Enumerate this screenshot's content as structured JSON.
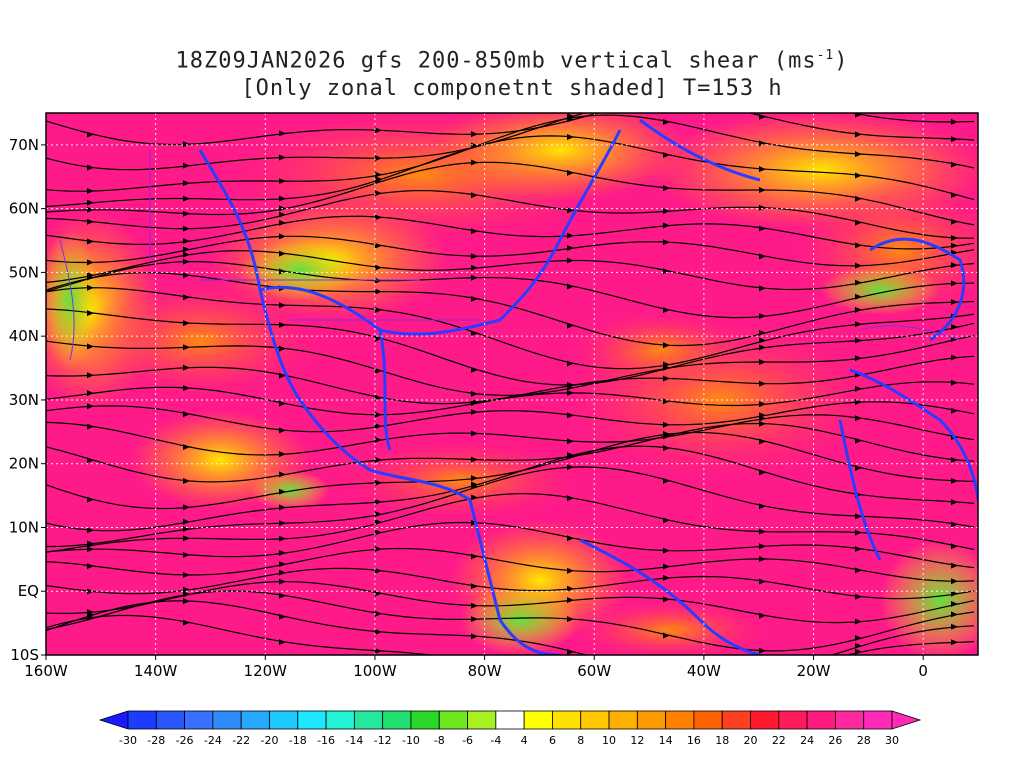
{
  "title": {
    "line1_prefix": "18Z09JAN2026 gfs 200-850mb vertical shear (ms",
    "line1_sup": "-1",
    "line1_suffix": ")",
    "line2": "[Only zonal componetnt shaded] T=153 h"
  },
  "map_data": {
    "lon_range": [
      -160,
      10
    ],
    "lat_range": [
      -10,
      75
    ],
    "lat_ticks": [
      {
        "value": 70,
        "label": "70N"
      },
      {
        "value": 60,
        "label": "60N"
      },
      {
        "value": 50,
        "label": "50N"
      },
      {
        "value": 40,
        "label": "40N"
      },
      {
        "value": 30,
        "label": "30N"
      },
      {
        "value": 20,
        "label": "20N"
      },
      {
        "value": 10,
        "label": "10N"
      },
      {
        "value": 0,
        "label": "EQ"
      },
      {
        "value": -10,
        "label": "10S"
      }
    ],
    "lon_ticks": [
      {
        "value": -160,
        "label": "160W"
      },
      {
        "value": -140,
        "label": "140W"
      },
      {
        "value": -120,
        "label": "120W"
      },
      {
        "value": -100,
        "label": "100W"
      },
      {
        "value": -80,
        "label": "80W"
      },
      {
        "value": -60,
        "label": "60W"
      },
      {
        "value": -40,
        "label": "40W"
      },
      {
        "value": -20,
        "label": "20W"
      },
      {
        "value": 0,
        "label": "0"
      }
    ],
    "grid": true
  },
  "colorbar": {
    "labels": [
      "-30",
      "-28",
      "-26",
      "-24",
      "-22",
      "-20",
      "-18",
      "-16",
      "-14",
      "-12",
      "-10",
      "-8",
      "-6",
      "-4",
      "4",
      "6",
      "8",
      "10",
      "12",
      "14",
      "16",
      "18",
      "20",
      "22",
      "24",
      "26",
      "28",
      "30"
    ],
    "colors": [
      "#1e3cff",
      "#2a55ff",
      "#3a70ff",
      "#2f8cff",
      "#25a8ff",
      "#1fc8ff",
      "#1ee8ff",
      "#22f2d6",
      "#25e8a0",
      "#22e070",
      "#2ad82a",
      "#6ee620",
      "#a8f020",
      "#ffffff",
      "#ffff00",
      "#ffe100",
      "#ffc800",
      "#ffb000",
      "#ff9900",
      "#ff8000",
      "#ff6000",
      "#ff4020",
      "#ff1a30",
      "#ff1a5a",
      "#ff1a80",
      "#ff2aa0",
      "#ff2ab5"
    ]
  }
}
